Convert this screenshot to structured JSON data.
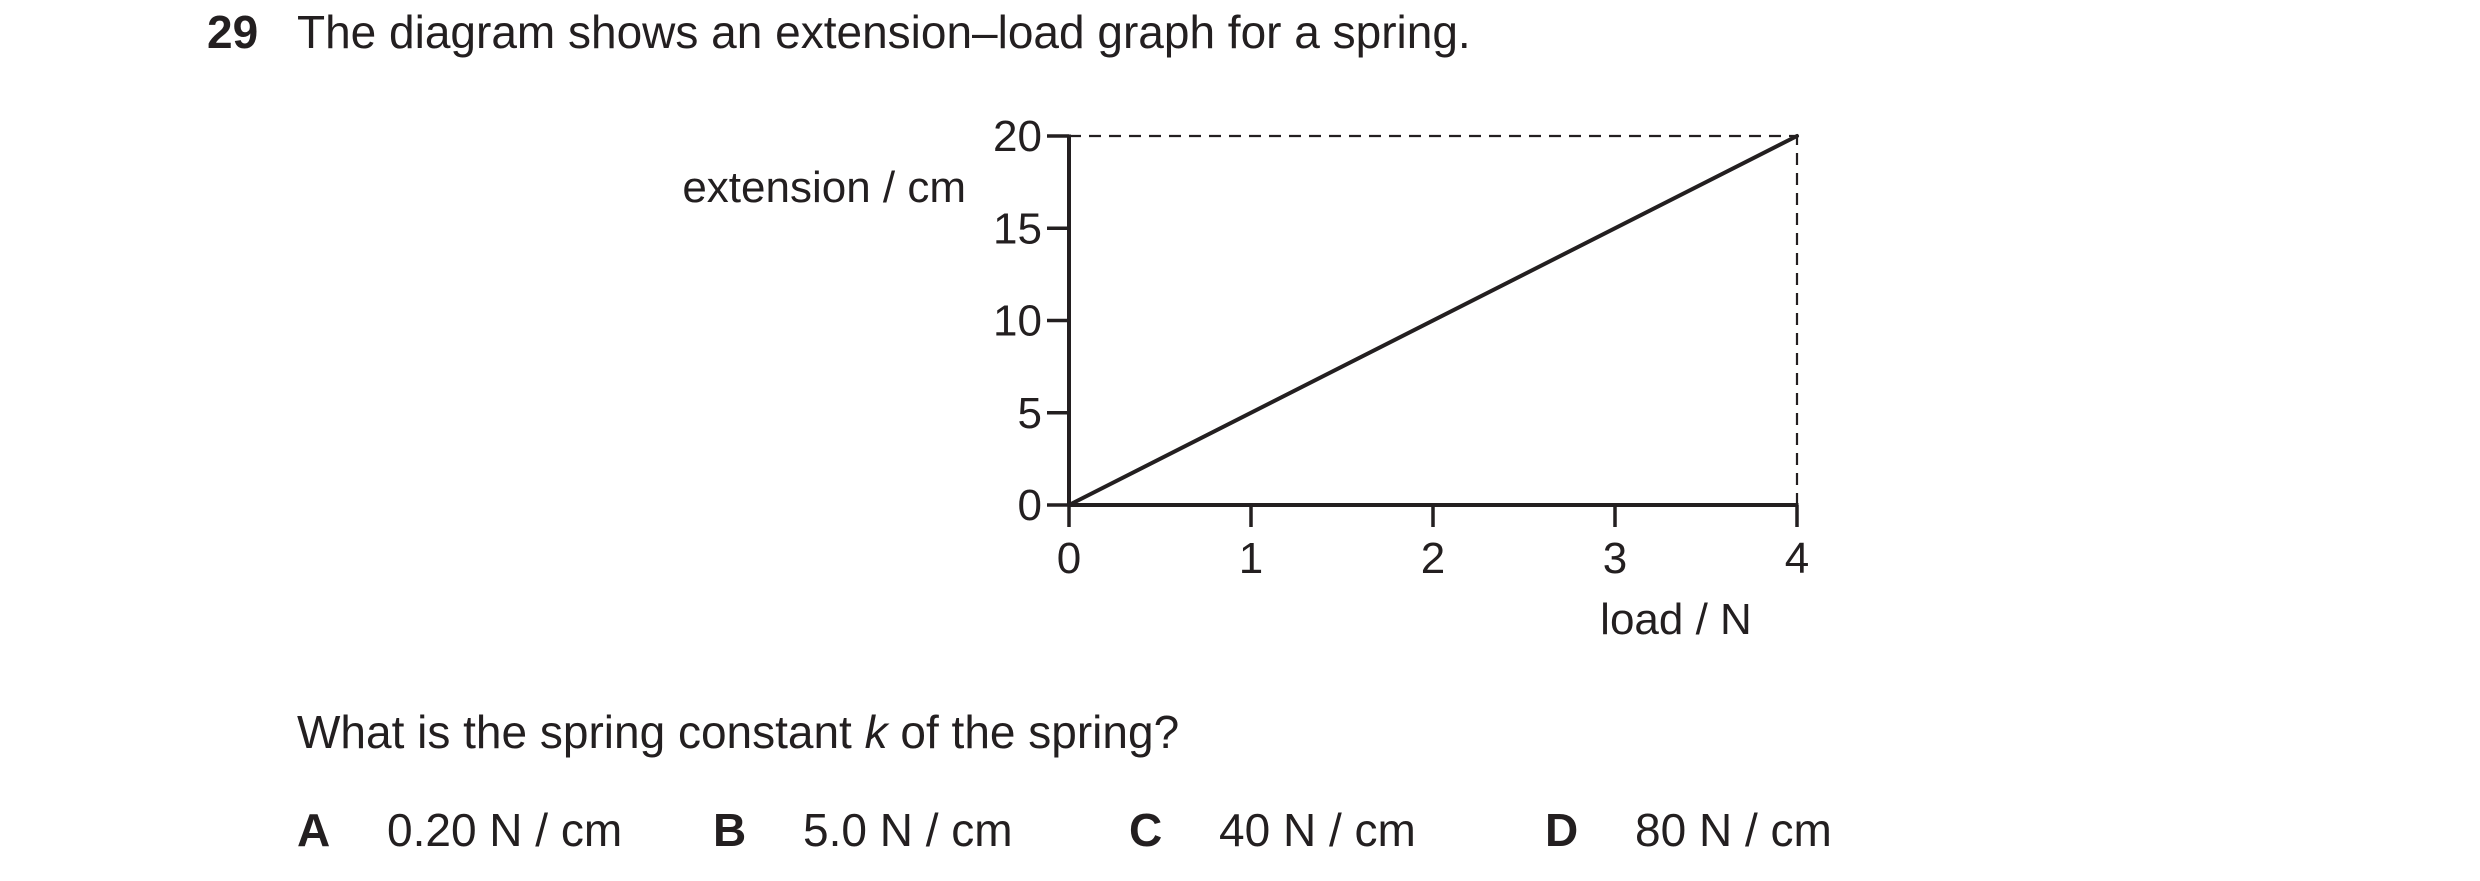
{
  "question": {
    "number": "29",
    "stem": "The diagram shows an extension–load graph for a spring.",
    "prompt_before": "What is the spring constant ",
    "prompt_var": "k",
    "prompt_after": " of the spring?"
  },
  "options": [
    {
      "letter": "A",
      "text": "0.20 N / cm"
    },
    {
      "letter": "B",
      "text": "5.0 N / cm"
    },
    {
      "letter": "C",
      "text": "40 N / cm"
    },
    {
      "letter": "D",
      "text": "80 N / cm"
    }
  ],
  "chart_data": {
    "type": "line",
    "xlabel": "load / N",
    "ylabel": "extension / cm",
    "xlim": [
      0,
      4
    ],
    "ylim": [
      0,
      20
    ],
    "xticks": [
      0,
      1,
      2,
      3,
      4
    ],
    "yticks": [
      0,
      5,
      10,
      15,
      20
    ],
    "grid": false,
    "series": [
      {
        "x": [
          0,
          4
        ],
        "y": [
          0,
          20
        ]
      }
    ],
    "guide_lines": [
      {
        "style": "dashed",
        "from": [
          0,
          20
        ],
        "to": [
          4,
          20
        ]
      },
      {
        "style": "dashed",
        "from": [
          4,
          0
        ],
        "to": [
          4,
          20
        ]
      }
    ],
    "colors": {
      "ink": "#231f20"
    }
  }
}
